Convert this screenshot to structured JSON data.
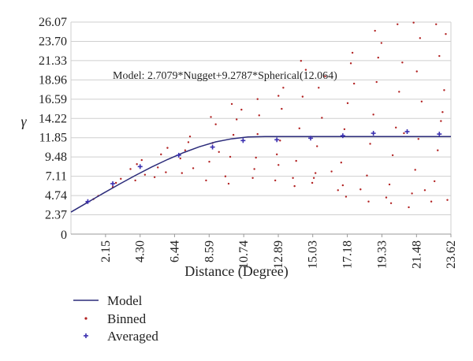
{
  "chart_data": {
    "type": "scatter",
    "title": "",
    "xlabel": "Distance (Degree)",
    "ylabel": "γ",
    "xlim": [
      0,
      23.62
    ],
    "ylim": [
      0,
      26.07
    ],
    "x_ticks": [
      "2.15",
      "4.30",
      "6.44",
      "8.59",
      "10.74",
      "12.89",
      "15.03",
      "17.18",
      "19.33",
      "21.48",
      "23.62"
    ],
    "y_ticks": [
      "0",
      "2.37",
      "4.74",
      "7.11",
      "9.48",
      "11.85",
      "14.22",
      "16.59",
      "18.96",
      "21.33",
      "23.70",
      "26.07"
    ],
    "grid": "horizontal",
    "annotation": {
      "text": "Model: 2.7079*Nugget+9.2787*Spherical(12.064)",
      "x": 2.6,
      "y": 19.1
    },
    "legend_position": "bottom-left",
    "colors": {
      "model": "#2b2b7a",
      "binned": "#b22222",
      "averaged": "#3a2fb0",
      "grid": "#cfcfcf"
    },
    "series": [
      {
        "name": "Model",
        "kind": "line",
        "nugget": 2.7079,
        "partial_sill": 9.2787,
        "range": 12.064,
        "x": [
          0,
          1,
          2,
          3,
          4,
          5,
          6,
          7,
          8,
          9,
          10,
          11,
          12.064,
          14,
          16,
          18,
          20,
          22,
          23.62
        ],
        "values": [
          2.71,
          3.86,
          5.01,
          6.13,
          7.21,
          8.23,
          9.17,
          10.02,
          10.75,
          11.34,
          11.72,
          11.94,
          11.99,
          11.99,
          11.99,
          11.99,
          11.99,
          11.99,
          11.99
        ]
      },
      {
        "name": "Binned",
        "kind": "points",
        "points": [
          [
            1.0,
            3.9
          ],
          [
            1.4,
            4.3
          ],
          [
            1.7,
            4.7
          ],
          [
            2.6,
            5.8
          ],
          [
            2.8,
            6.3
          ],
          [
            3.1,
            6.8
          ],
          [
            3.7,
            8.0
          ],
          [
            4.1,
            8.6
          ],
          [
            4.4,
            9.1
          ],
          [
            4.0,
            6.6
          ],
          [
            4.6,
            7.3
          ],
          [
            5.2,
            7.0
          ],
          [
            5.6,
            9.8
          ],
          [
            6.0,
            10.6
          ],
          [
            5.4,
            8.2
          ],
          [
            5.9,
            7.6
          ],
          [
            6.8,
            9.3
          ],
          [
            7.1,
            10.3
          ],
          [
            7.4,
            12.0
          ],
          [
            7.6,
            8.1
          ],
          [
            6.9,
            7.5
          ],
          [
            7.3,
            11.3
          ],
          [
            8.4,
            6.6
          ],
          [
            8.6,
            8.9
          ],
          [
            8.8,
            11.2
          ],
          [
            9.0,
            13.5
          ],
          [
            8.7,
            14.4
          ],
          [
            9.2,
            10.1
          ],
          [
            9.6,
            7.1
          ],
          [
            9.9,
            9.5
          ],
          [
            10.1,
            12.2
          ],
          [
            10.3,
            14.1
          ],
          [
            10.6,
            15.3
          ],
          [
            10.0,
            16.0
          ],
          [
            9.8,
            6.2
          ],
          [
            11.3,
            6.9
          ],
          [
            11.5,
            9.4
          ],
          [
            11.6,
            12.3
          ],
          [
            11.7,
            14.6
          ],
          [
            11.6,
            16.6
          ],
          [
            11.4,
            8.0
          ],
          [
            12.7,
            6.6
          ],
          [
            12.9,
            8.5
          ],
          [
            13.0,
            11.5
          ],
          [
            13.1,
            15.4
          ],
          [
            12.9,
            17.0
          ],
          [
            13.2,
            18.0
          ],
          [
            12.8,
            9.8
          ],
          [
            13.8,
            6.9
          ],
          [
            14.0,
            9.0
          ],
          [
            14.2,
            13.0
          ],
          [
            14.4,
            16.9
          ],
          [
            14.6,
            20.2
          ],
          [
            14.3,
            21.3
          ],
          [
            13.9,
            5.9
          ],
          [
            15.0,
            6.3
          ],
          [
            15.2,
            7.5
          ],
          [
            15.3,
            10.8
          ],
          [
            15.6,
            14.3
          ],
          [
            15.4,
            18.0
          ],
          [
            15.8,
            19.4
          ],
          [
            15.1,
            6.9
          ],
          [
            16.2,
            7.7
          ],
          [
            16.6,
            5.4
          ],
          [
            16.8,
            8.8
          ],
          [
            17.0,
            12.9
          ],
          [
            17.2,
            16.1
          ],
          [
            17.4,
            21.0
          ],
          [
            17.5,
            22.3
          ],
          [
            17.1,
            4.6
          ],
          [
            17.6,
            18.5
          ],
          [
            16.9,
            6.0
          ],
          [
            18.0,
            5.5
          ],
          [
            18.4,
            7.2
          ],
          [
            18.6,
            11.1
          ],
          [
            18.8,
            14.7
          ],
          [
            19.0,
            18.7
          ],
          [
            19.3,
            23.5
          ],
          [
            18.9,
            25.0
          ],
          [
            18.5,
            4.0
          ],
          [
            19.1,
            21.7
          ],
          [
            19.6,
            4.5
          ],
          [
            19.8,
            6.1
          ],
          [
            20.0,
            9.7
          ],
          [
            20.2,
            13.1
          ],
          [
            20.4,
            17.5
          ],
          [
            20.6,
            21.1
          ],
          [
            20.3,
            25.8
          ],
          [
            19.9,
            3.8
          ],
          [
            20.7,
            12.4
          ],
          [
            21.0,
            3.3
          ],
          [
            21.2,
            5.0
          ],
          [
            21.4,
            7.9
          ],
          [
            21.6,
            11.7
          ],
          [
            21.8,
            16.3
          ],
          [
            21.5,
            20.0
          ],
          [
            21.7,
            24.1
          ],
          [
            21.3,
            26.0
          ],
          [
            22.0,
            5.4
          ],
          [
            22.4,
            4.0
          ],
          [
            22.6,
            6.5
          ],
          [
            22.8,
            10.3
          ],
          [
            23.0,
            13.9
          ],
          [
            23.2,
            17.7
          ],
          [
            22.9,
            21.9
          ],
          [
            23.3,
            24.6
          ],
          [
            22.7,
            25.8
          ],
          [
            23.4,
            4.2
          ],
          [
            23.1,
            15.0
          ]
        ]
      },
      {
        "name": "Averaged",
        "kind": "points",
        "points": [
          [
            1.05,
            4.0
          ],
          [
            2.6,
            6.2
          ],
          [
            4.3,
            8.3
          ],
          [
            6.7,
            9.7
          ],
          [
            8.8,
            10.7
          ],
          [
            10.7,
            11.5
          ],
          [
            12.8,
            11.6
          ],
          [
            14.9,
            11.8
          ],
          [
            16.9,
            12.1
          ],
          [
            18.8,
            12.4
          ],
          [
            20.9,
            12.6
          ],
          [
            22.9,
            12.3
          ]
        ]
      }
    ]
  }
}
